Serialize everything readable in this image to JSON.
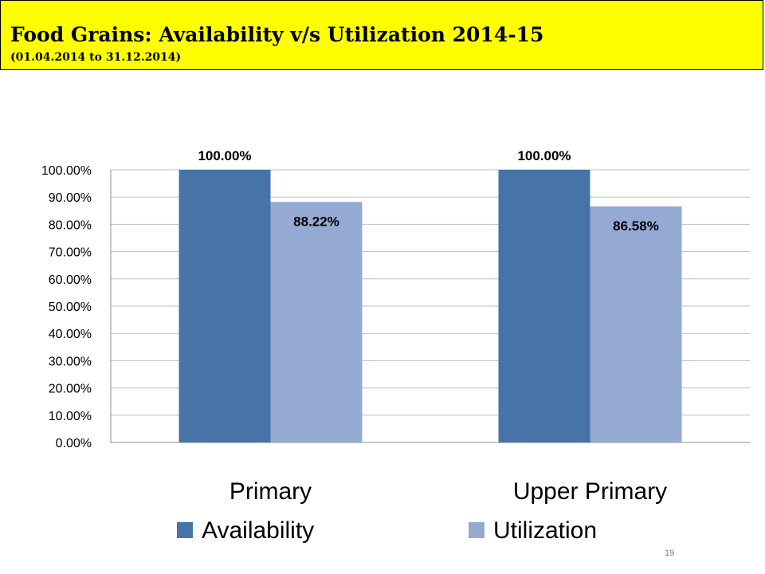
{
  "header": {
    "title": "Food Grains: Availability v/s Utilization 2014-15",
    "subtitle": "(01.04.2014 to 31.12.2014)",
    "background_color": "#ffff00"
  },
  "chart_data": {
    "type": "bar",
    "categories": [
      "Primary",
      "Upper Primary"
    ],
    "series": [
      {
        "name": "Availability",
        "values": [
          100.0,
          100.0
        ],
        "labels": [
          "100.00%",
          "100.00%"
        ],
        "color": "#4674a8"
      },
      {
        "name": "Utilization",
        "values": [
          88.22,
          86.58
        ],
        "labels": [
          "88.22%",
          "86.58%"
        ],
        "color": "#95aad3"
      }
    ],
    "ylim": [
      0,
      100
    ],
    "y_ticks": [
      "0.00%",
      "10.00%",
      "20.00%",
      "30.00%",
      "40.00%",
      "50.00%",
      "60.00%",
      "70.00%",
      "80.00%",
      "90.00%",
      "100.00%"
    ],
    "grid": true,
    "legend_position": "bottom"
  },
  "footer": {
    "page_number": "19"
  }
}
